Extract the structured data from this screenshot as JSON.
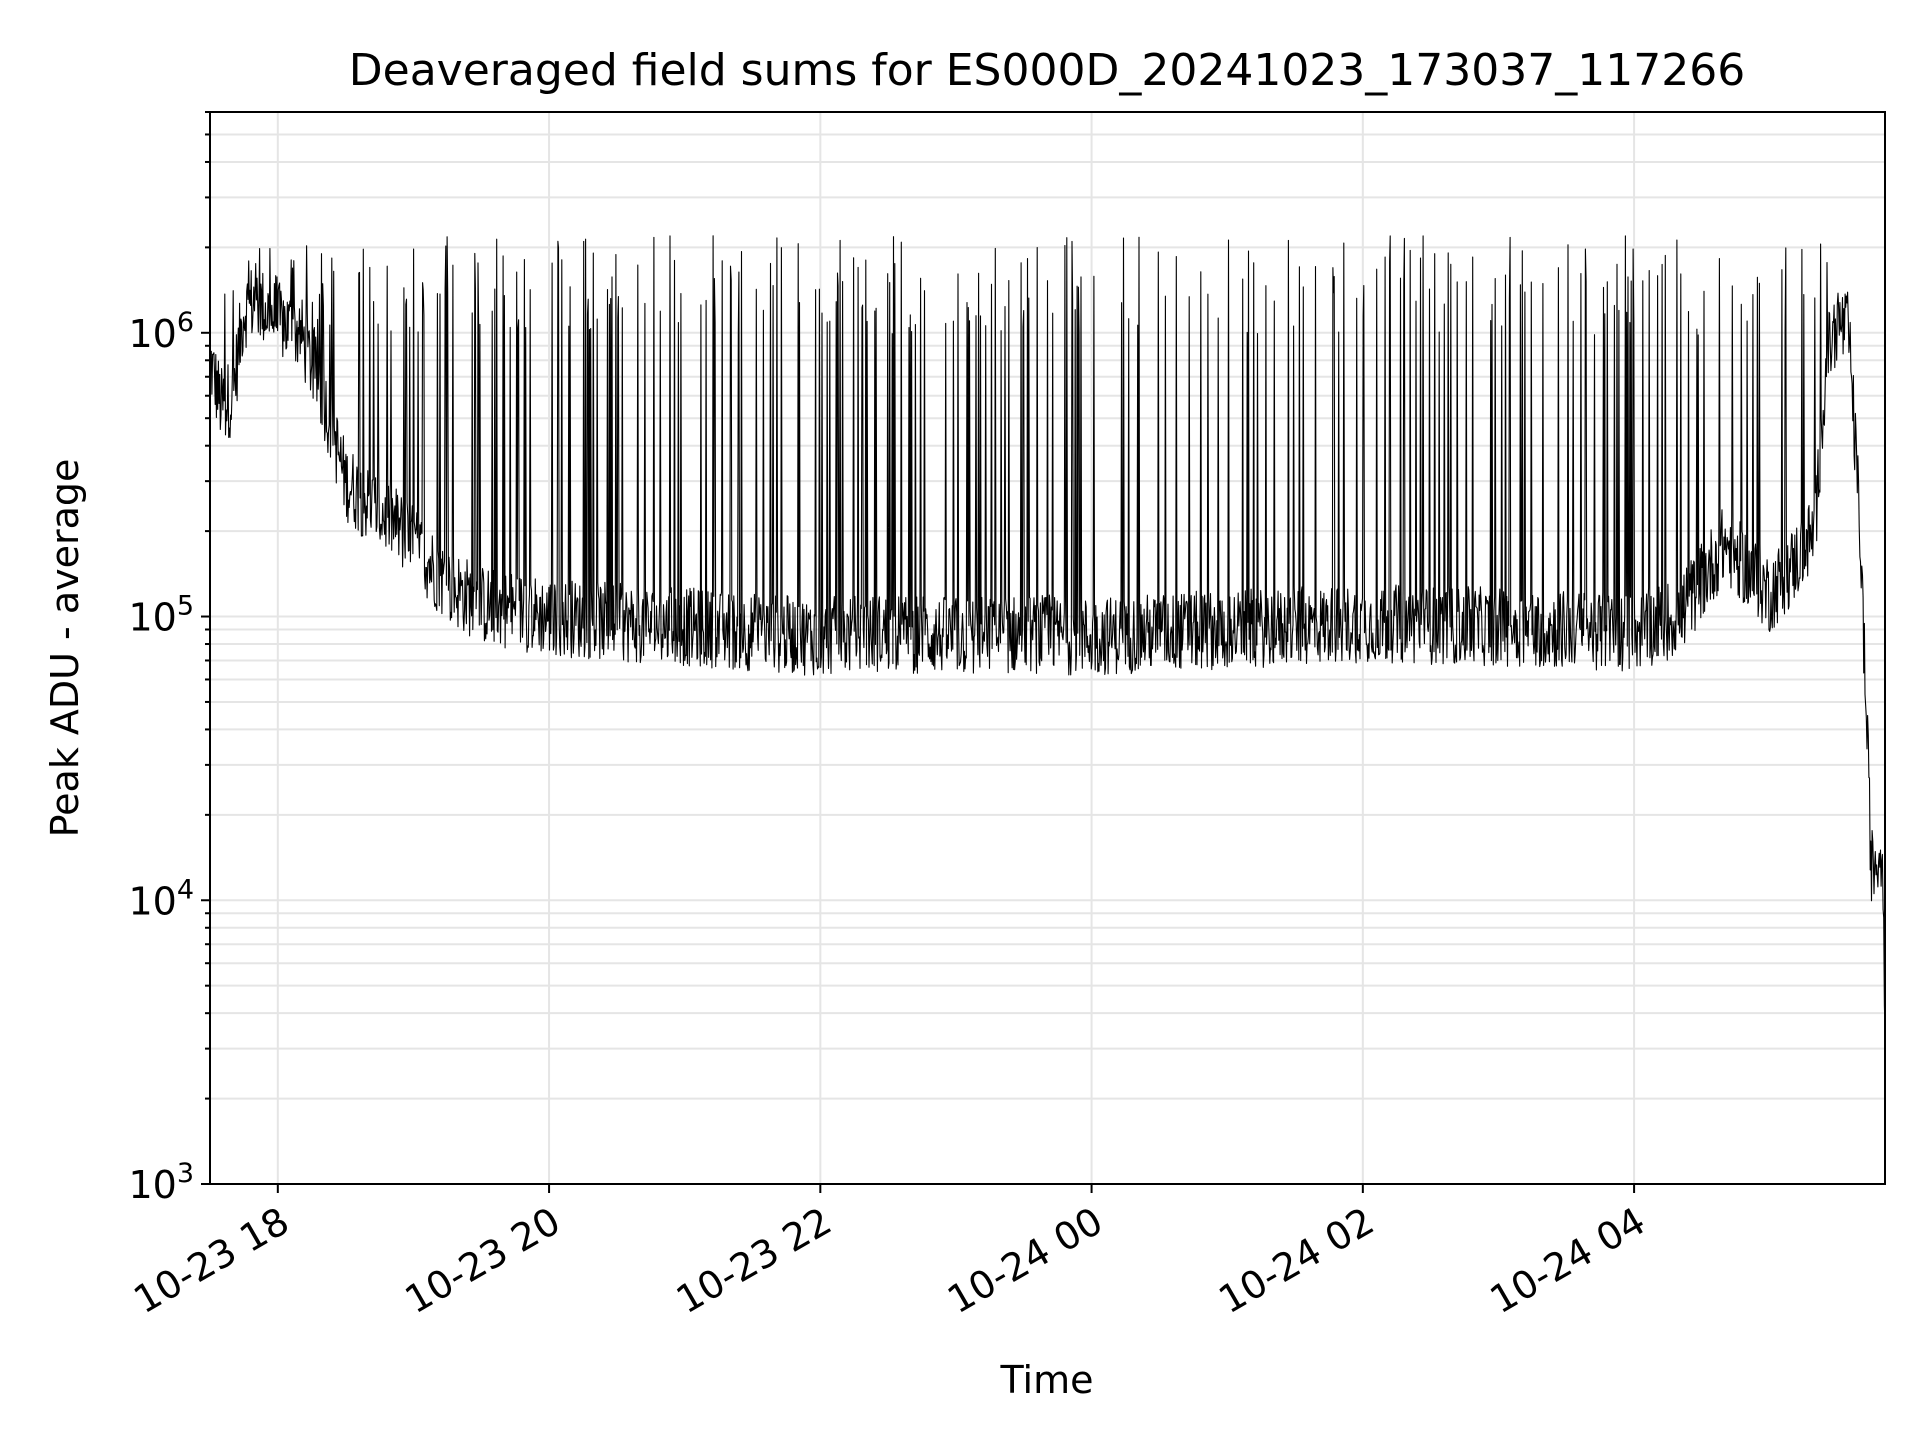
{
  "chart_data": {
    "type": "line",
    "title": "Deaveraged field sums for ES000D_20241023_173037_117266",
    "xlabel": "Time",
    "ylabel": "Peak ADU - average",
    "y_scale": "log",
    "ylim": [
      1000,
      6000000
    ],
    "xlim": [
      "2024-10-23 17:30",
      "2024-10-24 05:51"
    ],
    "grid": true,
    "line_color": "#000000",
    "grid_color": "#e5e5e5",
    "x_ticks": [
      {
        "value": "2024-10-23 18:00",
        "label": "10-23 18"
      },
      {
        "value": "2024-10-23 20:00",
        "label": "10-23 20"
      },
      {
        "value": "2024-10-23 22:00",
        "label": "10-23 22"
      },
      {
        "value": "2024-10-24 00:00",
        "label": "10-24 00"
      },
      {
        "value": "2024-10-24 02:00",
        "label": "10-24 02"
      },
      {
        "value": "2024-10-24 04:00",
        "label": "10-24 04"
      }
    ],
    "y_ticks": [
      {
        "value": 1000,
        "base": "10",
        "exp": "3"
      },
      {
        "value": 10000,
        "base": "10",
        "exp": "4"
      },
      {
        "value": 100000,
        "base": "10",
        "exp": "5"
      },
      {
        "value": 1000000,
        "base": "10",
        "exp": "6"
      }
    ],
    "series": [
      {
        "x": [
          "2024-10-23 17:30",
          "2024-10-23 17:35",
          "2024-10-23 17:40",
          "2024-10-23 17:45",
          "2024-10-23 17:50",
          "2024-10-23 17:55",
          "2024-10-23 18:00",
          "2024-10-23 18:10",
          "2024-10-23 18:20",
          "2024-10-23 18:30",
          "2024-10-23 18:40",
          "2024-10-23 18:50",
          "2024-10-23 19:00",
          "2024-10-23 19:15",
          "2024-10-23 19:30",
          "2024-10-23 20:00",
          "2024-10-23 20:30",
          "2024-10-23 21:00",
          "2024-10-23 21:30",
          "2024-10-23 22:00",
          "2024-10-23 22:30",
          "2024-10-23 23:00",
          "2024-10-23 23:30",
          "2024-10-24 00:00",
          "2024-10-24 00:30",
          "2024-10-24 01:00",
          "2024-10-24 01:30",
          "2024-10-24 02:00",
          "2024-10-24 02:30",
          "2024-10-24 03:00",
          "2024-10-24 03:30",
          "2024-10-24 04:00",
          "2024-10-24 04:20",
          "2024-10-24 04:40",
          "2024-10-24 05:00",
          "2024-10-24 05:10",
          "2024-10-24 05:20",
          "2024-10-24 05:25",
          "2024-10-24 05:30",
          "2024-10-24 05:35",
          "2024-10-24 05:40",
          "2024-10-24 05:45",
          "2024-10-24 05:50",
          "2024-10-24 05:51"
        ],
        "y": [
          800000,
          550000,
          600000,
          1200000,
          1300000,
          1200000,
          1100000,
          1000000,
          600000,
          300000,
          250000,
          220000,
          180000,
          130000,
          110000,
          100000,
          95000,
          92000,
          88000,
          85000,
          88000,
          85000,
          87000,
          85000,
          88000,
          90000,
          92000,
          95000,
          93000,
          92000,
          90000,
          88000,
          100000,
          180000,
          120000,
          150000,
          200000,
          800000,
          1100000,
          1000000,
          200000,
          13000,
          15000,
          4000
        ]
      }
    ]
  }
}
